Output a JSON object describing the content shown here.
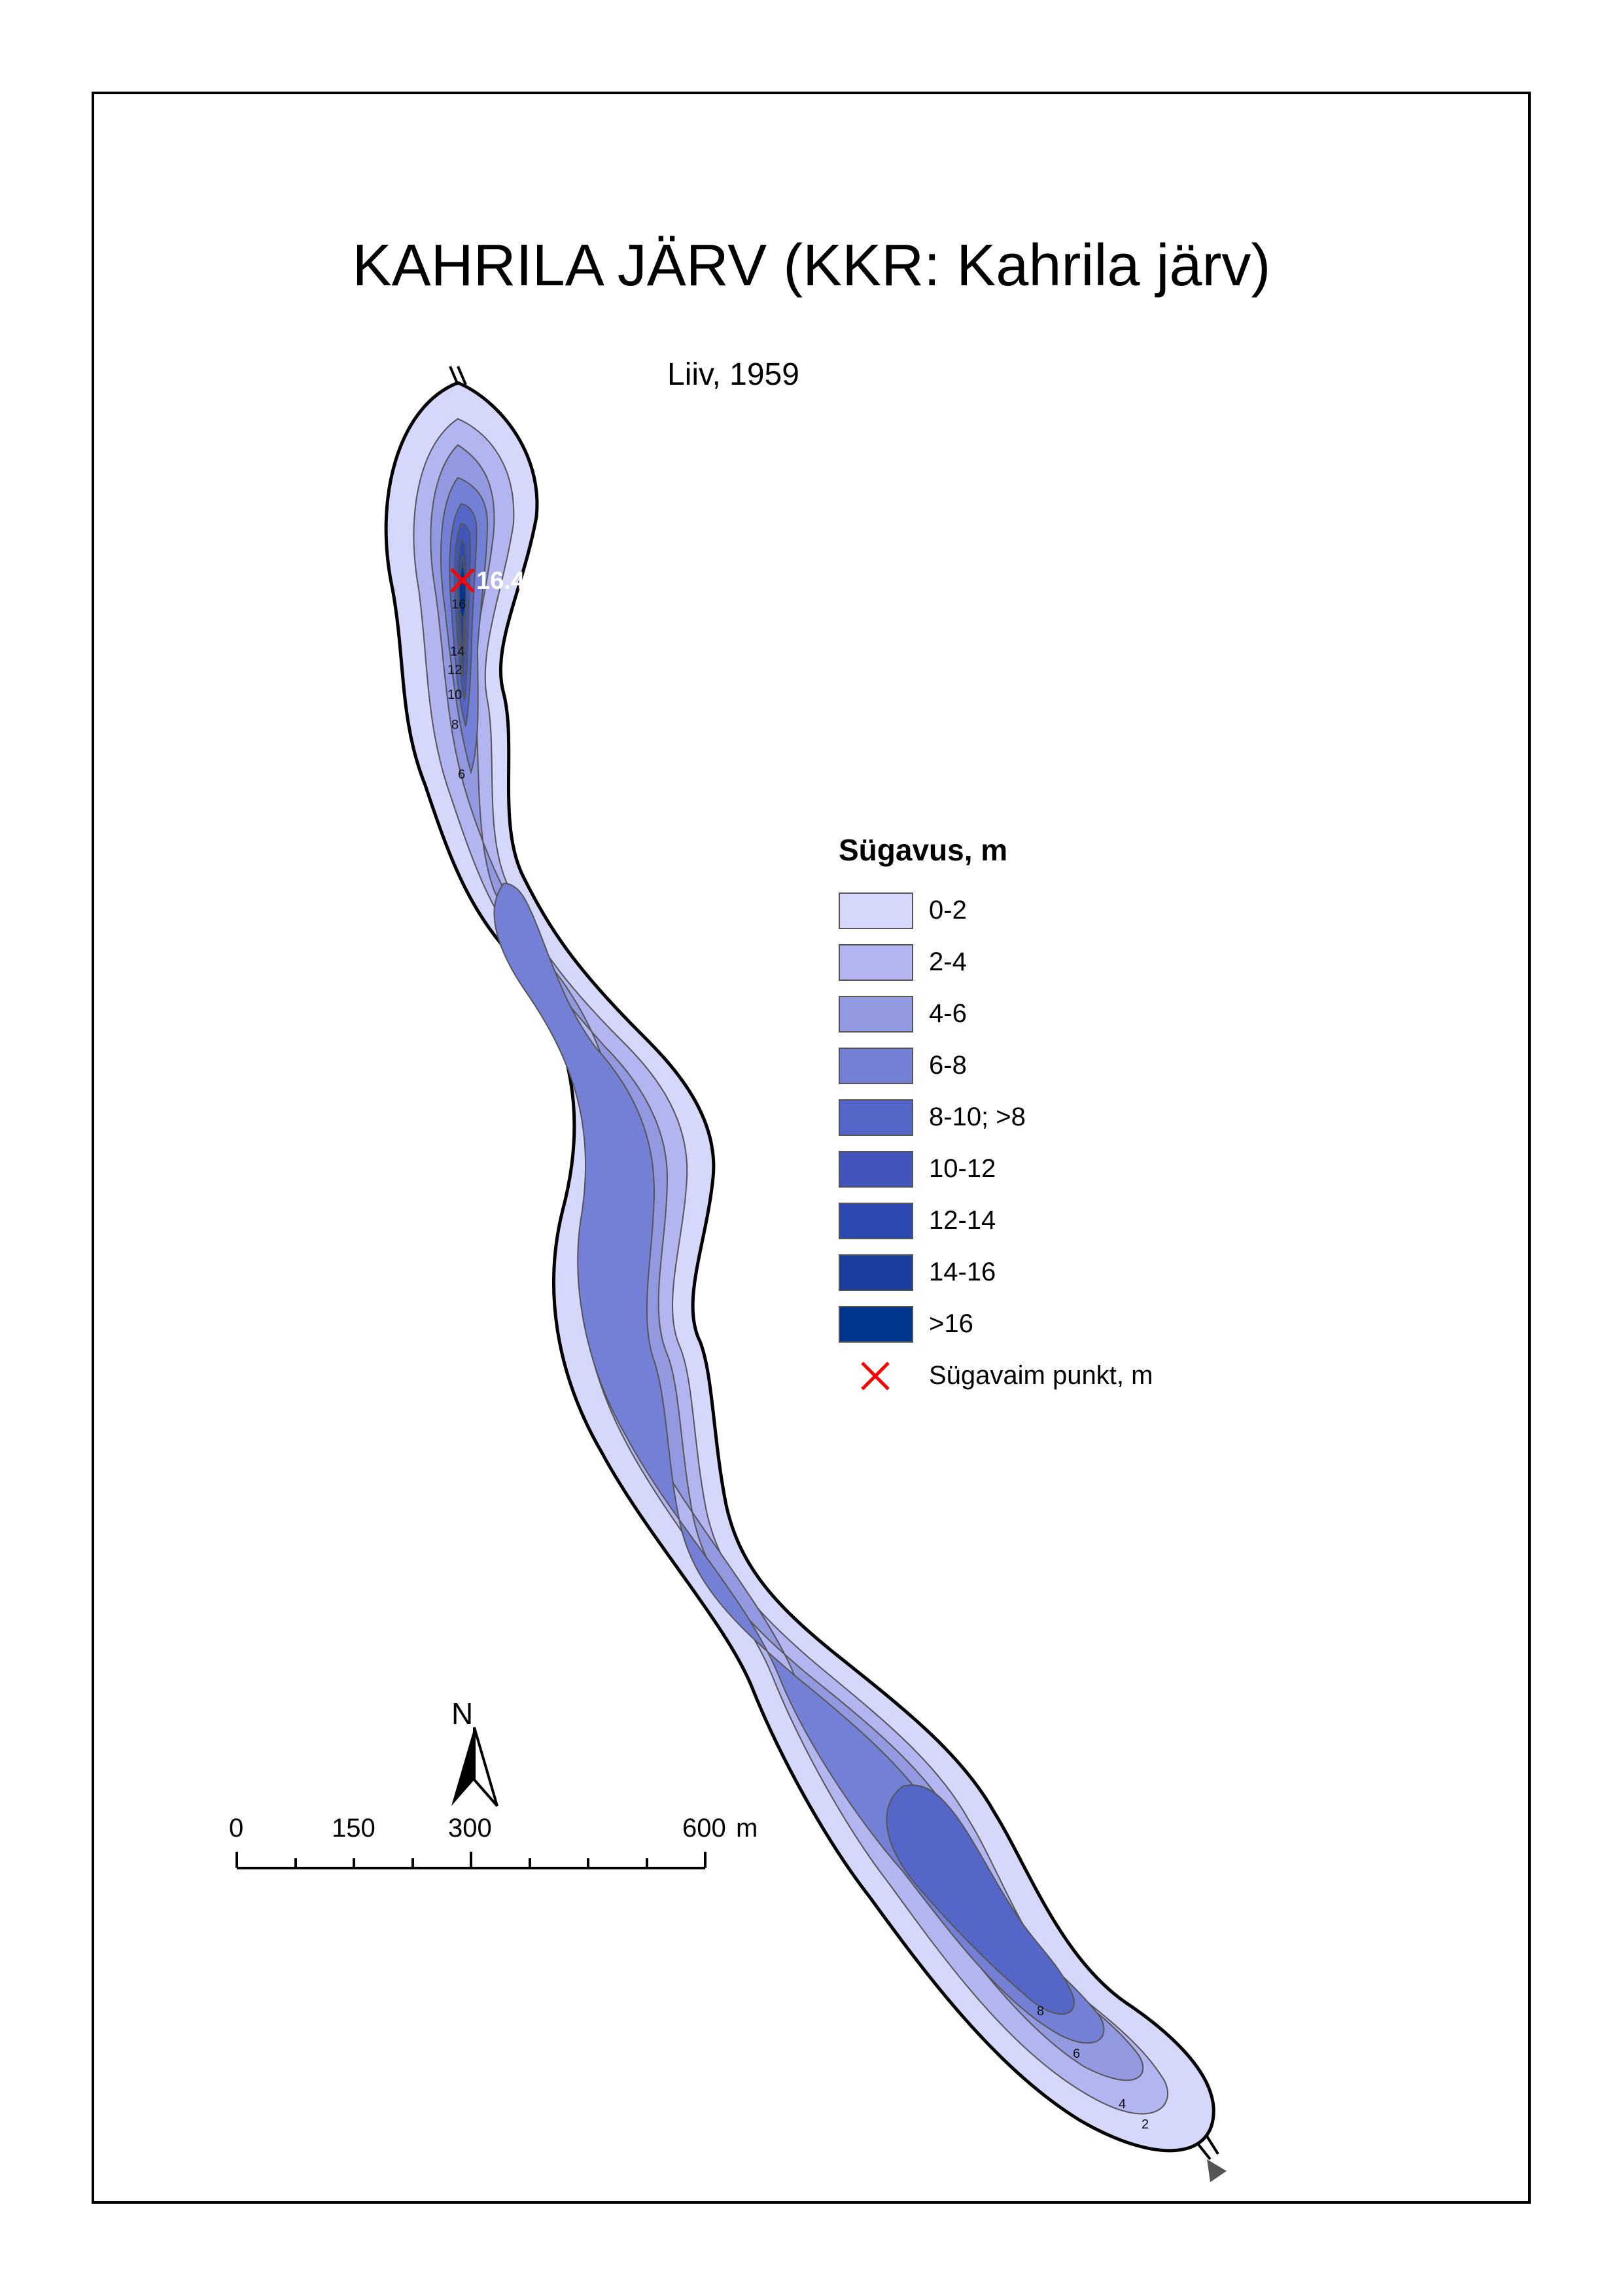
{
  "title": "KAHRILA JÄRV (KKR: Kahrila järv)",
  "subtitle": "Liiv, 1959",
  "legend": {
    "title": "Sügavus, m",
    "classes": [
      {
        "label": "0-2",
        "color": "#d5d7fb"
      },
      {
        "label": "2-4",
        "color": "#b3b5f0"
      },
      {
        "label": "4-6",
        "color": "#9399e0"
      },
      {
        "label": "6-8",
        "color": "#7480d6"
      },
      {
        "label": "8-10; >8",
        "color": "#5467c9"
      },
      {
        "label": "10-12",
        "color": "#4155bd"
      },
      {
        "label": "12-14",
        "color": "#2b49b0"
      },
      {
        "label": "14-16",
        "color": "#1a3e9f"
      },
      {
        "label": ">16",
        "color": "#003590"
      }
    ],
    "deepest_label": "Sügavaim punkt, m"
  },
  "deepest_point": {
    "value": "16.4",
    "color": "#ff0000"
  },
  "contour_labels": [
    "16",
    "14",
    "12",
    "10",
    "8",
    "6",
    "8",
    "6",
    "4",
    "2"
  ],
  "north_label": "N",
  "scale": {
    "labels": [
      "0",
      "150",
      "300",
      "600"
    ],
    "unit": "m"
  }
}
